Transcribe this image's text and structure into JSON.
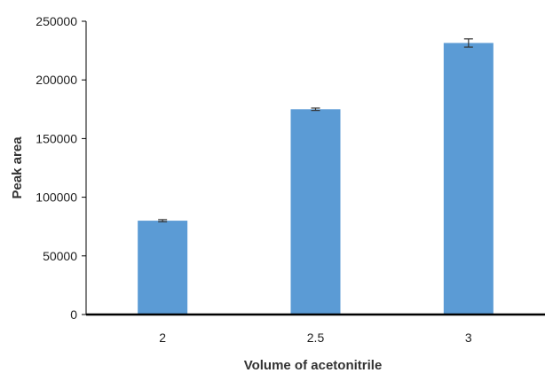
{
  "chart_data": {
    "type": "bar",
    "title": "",
    "xlabel": "Volume of acetonitrile",
    "ylabel": "Peak area",
    "categories": [
      "2",
      "2.5",
      "3"
    ],
    "values": [
      80000,
      175000,
      231500
    ],
    "errors": [
      900,
      1000,
      3500
    ],
    "ylim": [
      0,
      250000
    ],
    "yticks": [
      0,
      50000,
      100000,
      150000,
      200000,
      250000
    ],
    "ytick_labels": [
      "0",
      "50000",
      "100000",
      "150000",
      "200000",
      "250000"
    ],
    "grid": false,
    "legend": "none",
    "bar_color": "#5b9bd5",
    "error_color": "#333333",
    "axis_color": "#000000"
  }
}
